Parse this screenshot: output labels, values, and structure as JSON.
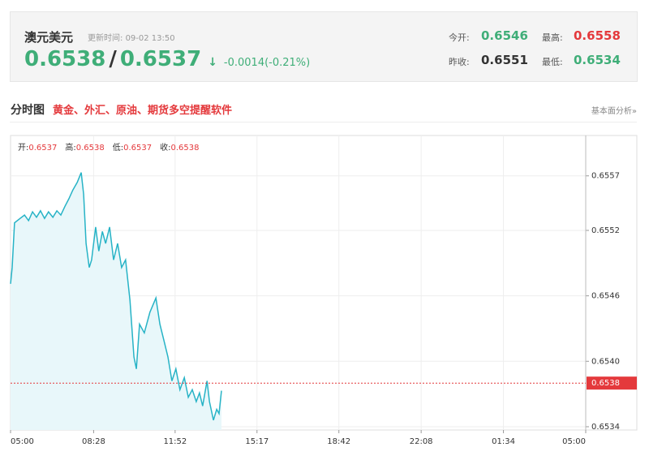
{
  "header": {
    "title": "澳元美元",
    "update_label": "更新时间:",
    "update_time": "09-02 13:50",
    "bid": "0.6538",
    "separator": "/",
    "ask": "0.6537",
    "arrow": "↓",
    "change": "-0.0014(-0.21%)",
    "stats": [
      {
        "label": "今开:",
        "value": "0.6546"
      },
      {
        "label": "最高:",
        "value": "0.6558"
      },
      {
        "label": "昨收:",
        "value": "0.6551"
      },
      {
        "label": "最低:",
        "value": "0.6534"
      }
    ]
  },
  "section": {
    "title": "分时图",
    "promo": "黄金、外汇、原油、期货多空提醒软件",
    "link": "基本面分析»"
  },
  "chart_data": {
    "type": "line",
    "quote": [
      {
        "label": "开:",
        "value": "0.6537"
      },
      {
        "label": "高:",
        "value": "0.6538"
      },
      {
        "label": "低:",
        "value": "0.6537"
      },
      {
        "label": "收:",
        "value": "0.6538"
      }
    ],
    "x": [
      0,
      4,
      10,
      24,
      35,
      45,
      55,
      65,
      75,
      85,
      95,
      106,
      116,
      126,
      136,
      146,
      156,
      167,
      177,
      183,
      189,
      197,
      203,
      213,
      221,
      230,
      238,
      248,
      258,
      268,
      278,
      288,
      299,
      309,
      315,
      323,
      335,
      349,
      364,
      374,
      384,
      394,
      404,
      414,
      424,
      435,
      445,
      455,
      465,
      473,
      481,
      492,
      498,
      508,
      516,
      522,
      528
    ],
    "values": [
      0.65471,
      0.65486,
      0.65527,
      0.65531,
      0.65534,
      0.65529,
      0.65537,
      0.65532,
      0.65538,
      0.65531,
      0.65537,
      0.65532,
      0.65538,
      0.65534,
      0.65542,
      0.65549,
      0.65557,
      0.65564,
      0.65573,
      0.65553,
      0.65508,
      0.65486,
      0.65493,
      0.65523,
      0.65501,
      0.65519,
      0.65508,
      0.65523,
      0.65493,
      0.65508,
      0.65486,
      0.65493,
      0.65456,
      0.65404,
      0.65393,
      0.65434,
      0.65426,
      0.65445,
      0.65458,
      0.65434,
      0.65419,
      0.65404,
      0.65382,
      0.65393,
      0.65374,
      0.65385,
      0.65367,
      0.65374,
      0.65363,
      0.65371,
      0.65359,
      0.65382,
      0.65363,
      0.65346,
      0.65356,
      0.65352,
      0.65373
    ],
    "color": "#27b3c6",
    "area_color": "#e8f7fa",
    "last_price": 0.6538,
    "last_price_color": "#e4393c",
    "xlim": [
      0,
      1440
    ],
    "xticks": [
      {
        "value": 0,
        "label": "05:00"
      },
      {
        "value": 208,
        "label": "08:28"
      },
      {
        "value": 412,
        "label": "11:52"
      },
      {
        "value": 617,
        "label": "15:17"
      },
      {
        "value": 822,
        "label": "18:42"
      },
      {
        "value": 1028,
        "label": "22:08"
      },
      {
        "value": 1234,
        "label": "01:34"
      },
      {
        "value": 1440,
        "label": "05:00"
      }
    ],
    "ylim": [
      0.65337,
      0.65607
    ],
    "yticks": [
      0.6557,
      0.6552,
      0.6546,
      {
        "value": 0.654,
        "label": "0.6540"
      },
      0.6534
    ],
    "grid": true
  }
}
